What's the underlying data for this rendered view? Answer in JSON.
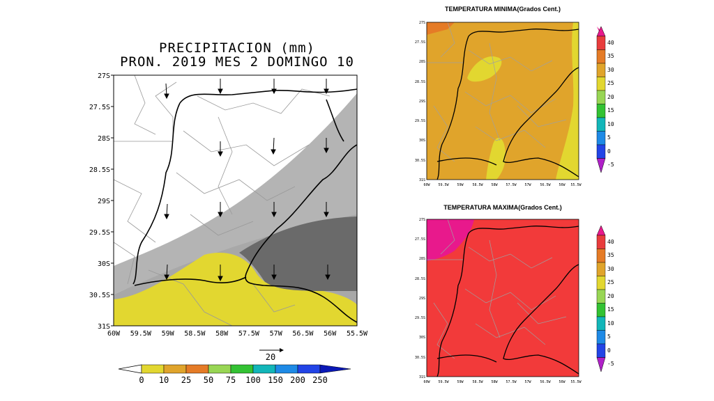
{
  "precip": {
    "title1": "PRECIPITACION (mm)",
    "title2": "PRON. 2019 MES 2 DOMINGO 10",
    "lat_labels": [
      "27S",
      "27.5S",
      "28S",
      "28.5S",
      "29S",
      "29.5S",
      "30S",
      "30.5S",
      "31S"
    ],
    "lon_labels": [
      "60W",
      "59.5W",
      "59W",
      "58.5W",
      "58W",
      "57.5W",
      "57W",
      "56.5W",
      "56W",
      "55.5W"
    ],
    "vector_ref_label": "20",
    "colorbar_labels": [
      "0",
      "10",
      "25",
      "50",
      "75",
      "100",
      "150",
      "200",
      "250"
    ],
    "colorbar_colors": [
      "#ffffff",
      "#e2d730",
      "#e0a42b",
      "#e57b26",
      "#98d654",
      "#33c233",
      "#12b6b9",
      "#1e8ae6",
      "#2244e6",
      "#0a18b6"
    ],
    "field_colors": {
      "none": "#ffffff",
      "light": "#b4b4b4",
      "medium": "#a0a0a0",
      "dark": "#6a6a6a",
      "yellow": "#e2d730"
    }
  },
  "tmin": {
    "title": "TEMPERATURA MINIMA(Grados Cent.)",
    "lat_labels": [
      "27S",
      "27.5S",
      "28S",
      "28.5S",
      "29S",
      "29.5S",
      "30S",
      "30.5S",
      "31S"
    ],
    "lon_labels": [
      "60W",
      "59.5W",
      "59W",
      "58.5W",
      "58W",
      "57.5W",
      "57W",
      "56.5W",
      "56W",
      "55.5W"
    ],
    "field_colors": {
      "base": "#e0a42b",
      "warm": "#e57b26",
      "cool": "#e2d730"
    }
  },
  "tmax": {
    "title": "TEMPERATURA MAXIMA(Grados Cent.)",
    "lat_labels": [
      "27S",
      "27.5S",
      "28S",
      "28.5S",
      "29S",
      "29.5S",
      "30S",
      "30.5S",
      "31S"
    ],
    "lon_labels": [
      "60W",
      "59.5W",
      "59W",
      "58.5W",
      "58W",
      "57.5W",
      "57W",
      "56.5W",
      "56W",
      "55.5W"
    ],
    "field_colors": {
      "base": "#f23a3a",
      "hot": "#e8198c"
    }
  },
  "temp_colorbar": {
    "labels": [
      "40",
      "35",
      "30",
      "25",
      "20",
      "15",
      "10",
      "5",
      "0",
      "-5"
    ],
    "colors": [
      "#e83c3c",
      "#e57b26",
      "#e0a42b",
      "#e2d730",
      "#98d654",
      "#33c233",
      "#12b6b9",
      "#1e8ae6",
      "#2244e6",
      "#8a2bd9"
    ],
    "cap_top": "#e8198c",
    "cap_bottom": "#b020c8"
  }
}
